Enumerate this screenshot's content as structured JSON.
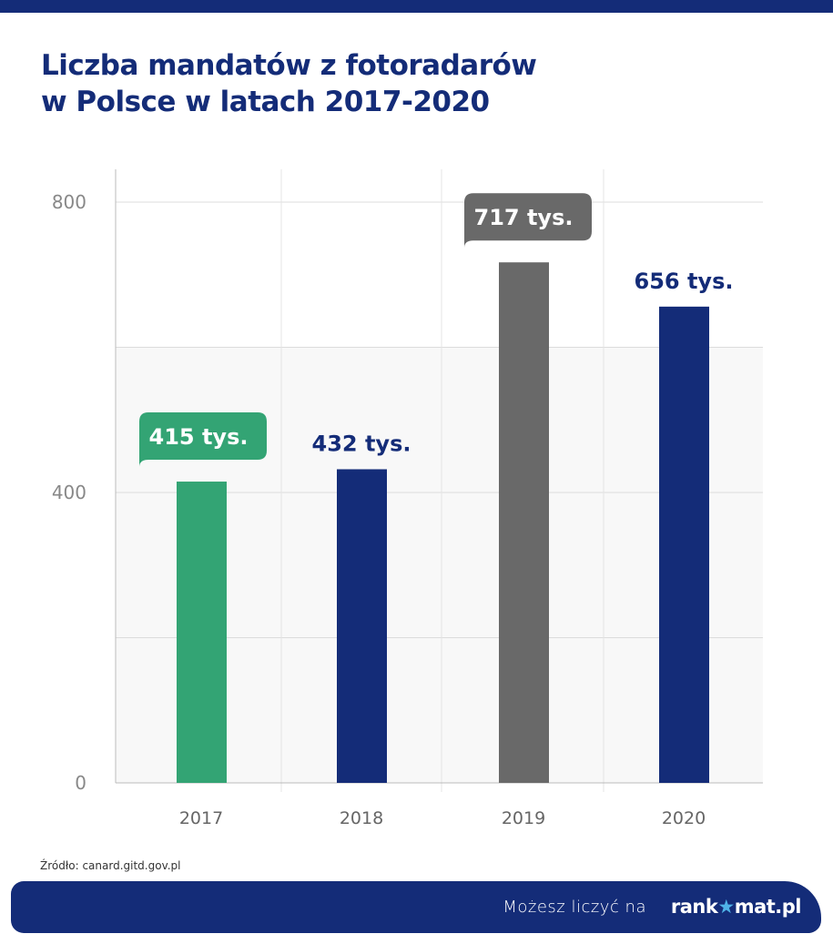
{
  "title_line1": "Liczba mandatów z fotoradarów",
  "title_line2": "w Polsce w latach 2017-2020",
  "source": "Źródło: canard.gitd.gov.pl",
  "footer": {
    "text": "Możesz liczyć na",
    "logo": "rankomat.pl"
  },
  "chart_data": {
    "type": "bar",
    "categories": [
      "2017",
      "2018",
      "2019",
      "2020"
    ],
    "values": [
      415,
      432,
      717,
      656
    ],
    "data_labels": [
      "415 tys.",
      "432 tys.",
      "717 tys.",
      "656 tys."
    ],
    "bar_colors": [
      "#33a474",
      "#142c78",
      "#696969",
      "#142c78"
    ],
    "label_styles": [
      "bubble",
      "plain",
      "bubble",
      "plain"
    ],
    "ylim": [
      0,
      800
    ],
    "yticks": [
      "0",
      "400",
      "800"
    ],
    "grid": true
  }
}
